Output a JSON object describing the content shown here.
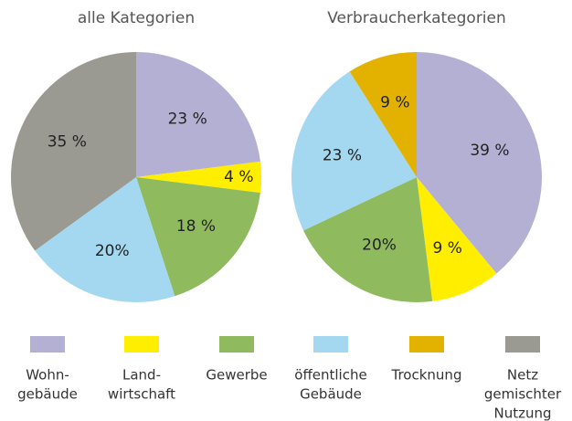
{
  "chart_data": [
    {
      "type": "pie",
      "title": "alle Kategorien",
      "values": [
        23,
        4,
        18,
        20,
        35
      ],
      "value_labels": [
        "23 %",
        "4 %",
        "18 %",
        "20%",
        "35 %"
      ],
      "colors": [
        "#b4b0d4",
        "#ffee00",
        "#8fbb5e",
        "#a4d8f1",
        "#9a9a93"
      ]
    },
    {
      "type": "pie",
      "title": "Verbraucherkategorien",
      "values": [
        39,
        9,
        20,
        23,
        9
      ],
      "value_labels": [
        "39 %",
        "9 %",
        "20%",
        "23 %",
        "9 %"
      ],
      "colors": [
        "#b4b0d4",
        "#ffee00",
        "#8fbb5e",
        "#a4d8f1",
        "#e3b200"
      ]
    }
  ],
  "legend": [
    {
      "lines": [
        "Wohn-",
        "gebäude"
      ],
      "color": "#b4b0d4"
    },
    {
      "lines": [
        "Land-",
        "wirtschaft"
      ],
      "color": "#ffee00"
    },
    {
      "lines": [
        "Gewerbe"
      ],
      "color": "#8fbb5e"
    },
    {
      "lines": [
        "öffentliche",
        "Gebäude"
      ],
      "color": "#a4d8f1"
    },
    {
      "lines": [
        "Trocknung"
      ],
      "color": "#e3b200"
    },
    {
      "lines": [
        "Netz",
        "gemischter",
        "Nutzung"
      ],
      "color": "#9a9a93"
    }
  ]
}
